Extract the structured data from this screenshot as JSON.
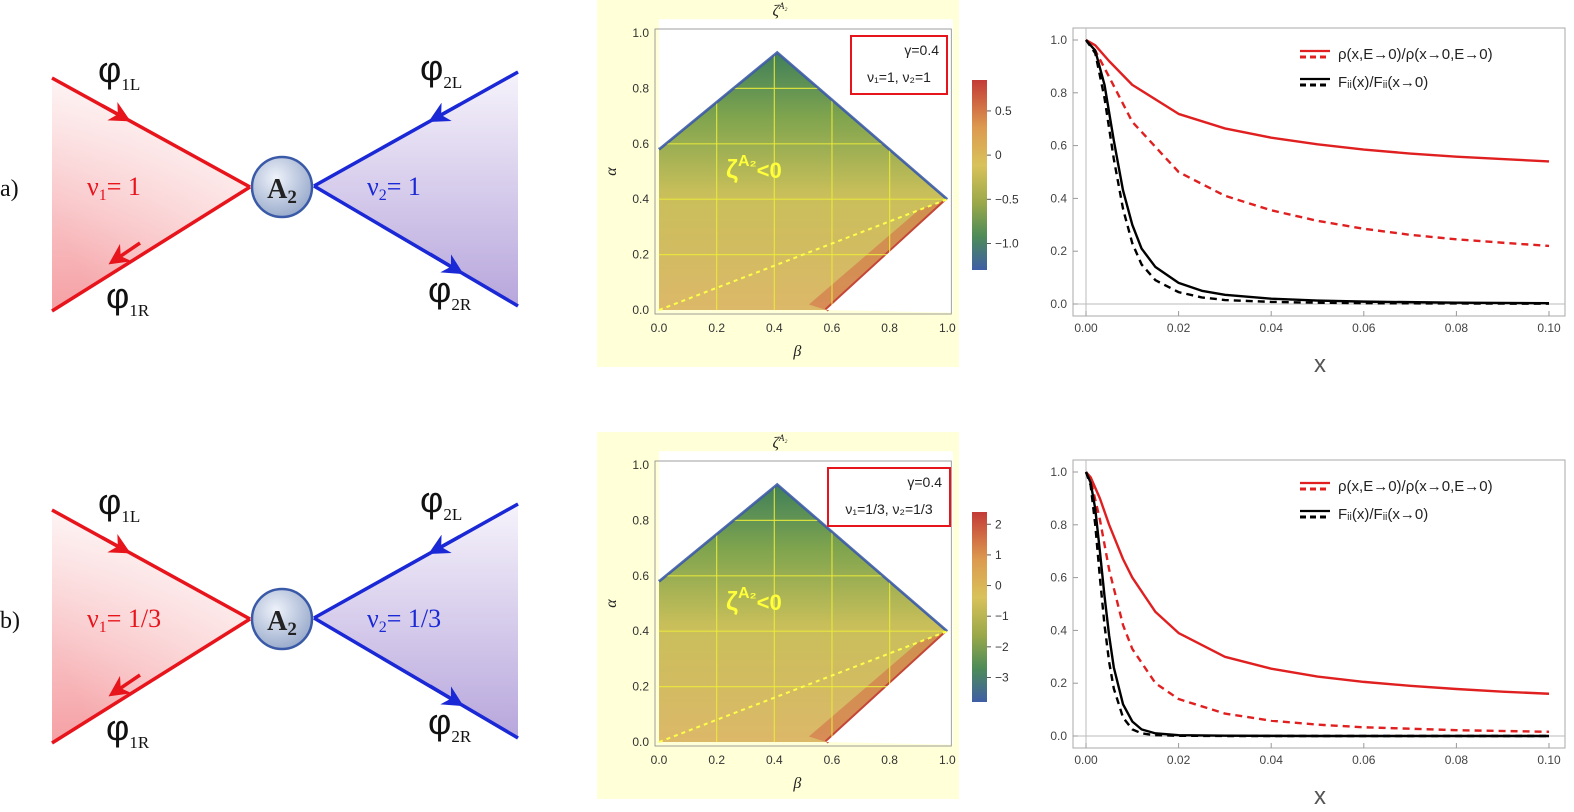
{
  "rows": [
    {
      "label": "a)",
      "junction": {
        "center": "A",
        "center_sub": "2",
        "left_nu": "ν",
        "left_nu_sub": "1",
        "left_nu_value": "=  1",
        "right_nu": "ν",
        "right_nu_sub": "2",
        "right_nu_value": "=  1",
        "fields": [
          {
            "base": "φ",
            "sub": "1L"
          },
          {
            "base": "φ",
            "sub": "1R"
          },
          {
            "base": "φ",
            "sub": "2L"
          },
          {
            "base": "φ",
            "sub": "2R"
          }
        ]
      },
      "heatmap": {
        "title": "ζ",
        "title_sup": "A₂",
        "xlabel": "β",
        "ylabel": "α",
        "ticks": [
          "0.0",
          "0.2",
          "0.4",
          "0.6",
          "0.8",
          "1.0"
        ],
        "annotation": "ζ",
        "annotation_sup": "A₂",
        "annotation_rel": "<0",
        "legend_line1": "γ=0.4",
        "legend_line2": "ν₁=1, ν₂=1",
        "colorbar_range": [
          -1.3,
          0.85
        ],
        "colorbar_ticks": [
          "0.5",
          "0",
          "−0.5",
          "−1.0"
        ],
        "colorbar_values": [
          0.5,
          0,
          -0.5,
          -1.0
        ]
      },
      "chart_data": {
        "type": "line",
        "xlabel": "x",
        "xlim": [
          0,
          0.1
        ],
        "ylim": [
          0,
          1
        ],
        "x_ticks": [
          "0.00",
          "0.02",
          "0.04",
          "0.06",
          "0.08",
          "0.10"
        ],
        "y_ticks": [
          "0.0",
          "0.2",
          "0.4",
          "0.6",
          "0.8",
          "1.0"
        ],
        "legend": [
          {
            "label": "ρ(x,E→0)/ρ(x→0,E→0)",
            "color": "#e02020"
          },
          {
            "label": "Fᵢᵢ(x)/Fᵢᵢ(x→0)",
            "color": "#000000"
          }
        ],
        "series": [
          {
            "color": "#e02020",
            "style": "solid",
            "x": [
              0,
              0.002,
              0.005,
              0.01,
              0.02,
              0.03,
              0.04,
              0.05,
              0.06,
              0.07,
              0.08,
              0.09,
              0.1
            ],
            "y": [
              1.0,
              0.98,
              0.92,
              0.83,
              0.72,
              0.665,
              0.63,
              0.605,
              0.585,
              0.57,
              0.558,
              0.549,
              0.54
            ]
          },
          {
            "color": "#e02020",
            "style": "dashed",
            "x": [
              0,
              0.002,
              0.005,
              0.01,
              0.02,
              0.03,
              0.04,
              0.05,
              0.06,
              0.07,
              0.08,
              0.09,
              0.1
            ],
            "y": [
              1.0,
              0.96,
              0.86,
              0.69,
              0.5,
              0.41,
              0.355,
              0.315,
              0.285,
              0.262,
              0.245,
              0.232,
              0.22
            ]
          },
          {
            "color": "#000000",
            "style": "solid",
            "x": [
              0,
              0.002,
              0.004,
              0.006,
              0.008,
              0.01,
              0.012,
              0.015,
              0.02,
              0.025,
              0.03,
              0.04,
              0.05,
              0.06,
              0.08,
              0.1
            ],
            "y": [
              1.0,
              0.96,
              0.83,
              0.62,
              0.43,
              0.3,
              0.21,
              0.14,
              0.08,
              0.05,
              0.035,
              0.02,
              0.013,
              0.009,
              0.005,
              0.003
            ]
          },
          {
            "color": "#000000",
            "style": "dashed",
            "x": [
              0,
              0.002,
              0.004,
              0.006,
              0.008,
              0.01,
              0.012,
              0.015,
              0.02,
              0.025,
              0.03,
              0.04,
              0.05,
              0.06,
              0.08,
              0.1
            ],
            "y": [
              1.0,
              0.95,
              0.78,
              0.55,
              0.36,
              0.23,
              0.15,
              0.09,
              0.045,
              0.025,
              0.015,
              0.008,
              0.005,
              0.003,
              0.002,
              0.001
            ]
          }
        ]
      }
    },
    {
      "label": "b)",
      "junction": {
        "center": "A",
        "center_sub": "2",
        "left_nu": "ν",
        "left_nu_sub": "1",
        "left_nu_value": "=  1/3",
        "right_nu": "ν",
        "right_nu_sub": "2",
        "right_nu_value": "=  1/3",
        "fields": [
          {
            "base": "φ",
            "sub": "1L"
          },
          {
            "base": "φ",
            "sub": "1R"
          },
          {
            "base": "φ",
            "sub": "2L"
          },
          {
            "base": "φ",
            "sub": "2R"
          }
        ]
      },
      "heatmap": {
        "title": "ζ",
        "title_sup": "A₂",
        "xlabel": "β",
        "ylabel": "α",
        "ticks": [
          "0.0",
          "0.2",
          "0.4",
          "0.6",
          "0.8",
          "1.0"
        ],
        "annotation": "ζ",
        "annotation_sup": "A₂",
        "annotation_rel": "<0",
        "legend_line1": "γ=0.4",
        "legend_line2": "ν₁=1/3, ν₂=1/3",
        "colorbar_range": [
          -3.8,
          2.4
        ],
        "colorbar_ticks": [
          "2",
          "1",
          "0",
          "−1",
          "−2",
          "−3"
        ],
        "colorbar_values": [
          2,
          1,
          0,
          -1,
          -2,
          -3
        ]
      },
      "chart_data": {
        "type": "line",
        "xlabel": "x",
        "xlim": [
          0,
          0.1
        ],
        "ylim": [
          0,
          1
        ],
        "x_ticks": [
          "0.00",
          "0.02",
          "0.04",
          "0.06",
          "0.08",
          "0.10"
        ],
        "y_ticks": [
          "0.0",
          "0.2",
          "0.4",
          "0.6",
          "0.8",
          "1.0"
        ],
        "legend": [
          {
            "label": "ρ(x,E→0)/ρ(x→0,E→0)",
            "color": "#e02020"
          },
          {
            "label": "Fᵢᵢ(x)/Fᵢᵢ(x→0)",
            "color": "#000000"
          }
        ],
        "series": [
          {
            "color": "#e02020",
            "style": "solid",
            "x": [
              0,
              0.001,
              0.003,
              0.005,
              0.008,
              0.01,
              0.015,
              0.02,
              0.03,
              0.04,
              0.05,
              0.06,
              0.07,
              0.08,
              0.09,
              0.1
            ],
            "y": [
              1.0,
              0.98,
              0.9,
              0.8,
              0.67,
              0.6,
              0.47,
              0.39,
              0.3,
              0.255,
              0.225,
              0.205,
              0.19,
              0.178,
              0.168,
              0.16
            ]
          },
          {
            "color": "#e02020",
            "style": "dashed",
            "x": [
              0,
              0.001,
              0.003,
              0.005,
              0.008,
              0.01,
              0.015,
              0.02,
              0.03,
              0.04,
              0.05,
              0.06,
              0.08,
              0.1
            ],
            "y": [
              1.0,
              0.97,
              0.82,
              0.63,
              0.42,
              0.33,
              0.2,
              0.14,
              0.085,
              0.058,
              0.043,
              0.033,
              0.022,
              0.016
            ]
          },
          {
            "color": "#000000",
            "style": "solid",
            "x": [
              0,
              0.001,
              0.002,
              0.003,
              0.004,
              0.005,
              0.006,
              0.008,
              0.01,
              0.012,
              0.015,
              0.02,
              0.03,
              0.05,
              0.1
            ],
            "y": [
              1.0,
              0.96,
              0.86,
              0.7,
              0.53,
              0.38,
              0.26,
              0.12,
              0.055,
              0.025,
              0.01,
              0.003,
              0.001,
              0.0,
              0.0
            ]
          },
          {
            "color": "#000000",
            "style": "dashed",
            "x": [
              0,
              0.001,
              0.002,
              0.003,
              0.004,
              0.005,
              0.006,
              0.008,
              0.01,
              0.012,
              0.015,
              0.02,
              0.03,
              0.05,
              0.1
            ],
            "y": [
              1.0,
              0.95,
              0.8,
              0.6,
              0.42,
              0.28,
              0.18,
              0.07,
              0.025,
              0.01,
              0.003,
              0.001,
              0.0,
              0.0,
              0.0
            ]
          }
        ]
      }
    }
  ]
}
